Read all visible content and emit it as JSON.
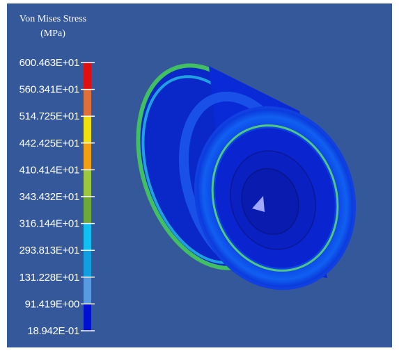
{
  "legend": {
    "title": "Von Mises Stress",
    "unit": "(MPa)",
    "labels": [
      "600.463E+01",
      "560.341E+01",
      "514.725E+01",
      "442.425E+01",
      "410.414E+01",
      "343.432E+01",
      "316.144E+01",
      "293.813E+01",
      "131.228E+01",
      "91.419E+00",
      "18.942E-01"
    ],
    "colors": [
      "#e01010",
      "#e0703a",
      "#f0e010",
      "#f0a010",
      "#9cc840",
      "#6ea838",
      "#10c0f0",
      "#10a0e0",
      "#5a9ae0",
      "#0010d0"
    ]
  }
}
